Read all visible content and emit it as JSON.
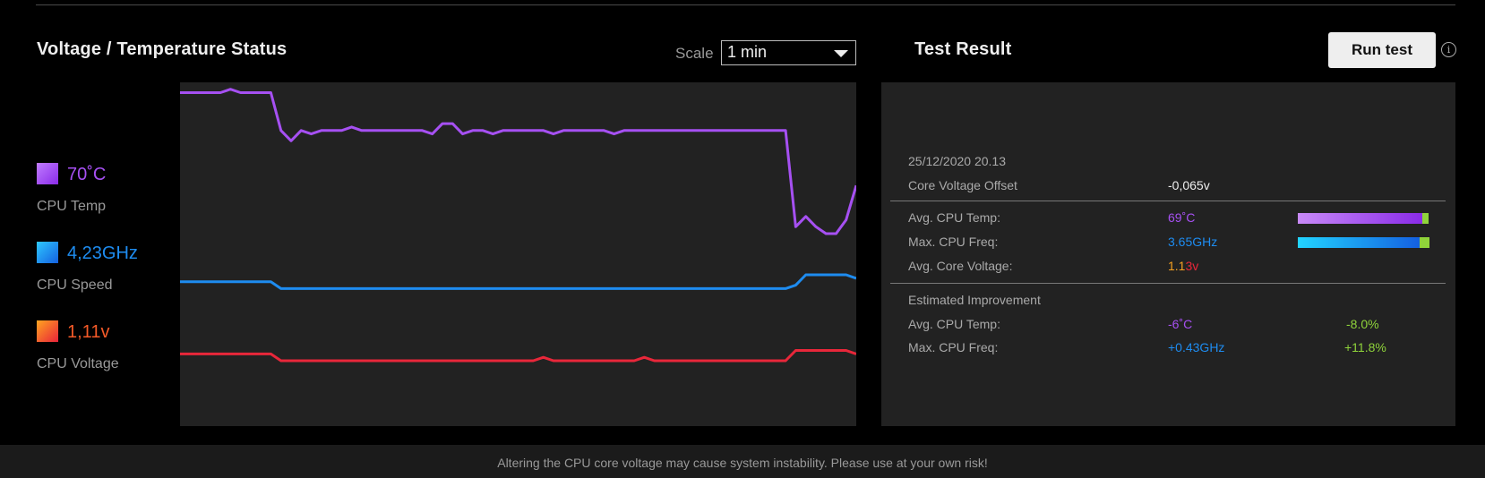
{
  "status_panel": {
    "title": "Voltage / Temperature Status",
    "scale_label": "Scale",
    "scale_value": "1 min"
  },
  "legend": [
    {
      "value": "70˚C",
      "label": "CPU Temp",
      "color": "#a650f2"
    },
    {
      "value": "4,23GHz",
      "label": "CPU Speed",
      "color": "#1e8cf0"
    },
    {
      "value": "1,11v",
      "label": "CPU Voltage",
      "color": "#f55a28"
    }
  ],
  "chart_data": {
    "type": "line",
    "title": "",
    "xlabel": "",
    "ylabel": "",
    "grid": false,
    "series": [
      {
        "color": "#a650f2",
        "values": [
          0.97,
          0.97,
          0.97,
          0.97,
          0.97,
          0.98,
          0.97,
          0.97,
          0.97,
          0.97,
          0.86,
          0.83,
          0.86,
          0.85,
          0.86,
          0.86,
          0.86,
          0.87,
          0.86,
          0.86,
          0.86,
          0.86,
          0.86,
          0.86,
          0.86,
          0.85,
          0.88,
          0.88,
          0.85,
          0.86,
          0.86,
          0.85,
          0.86,
          0.86,
          0.86,
          0.86,
          0.86,
          0.85,
          0.86,
          0.86,
          0.86,
          0.86,
          0.86,
          0.85,
          0.86,
          0.86,
          0.86,
          0.86,
          0.86,
          0.86,
          0.86,
          0.86,
          0.86,
          0.86,
          0.86,
          0.86,
          0.86,
          0.86,
          0.86,
          0.86,
          0.86,
          0.58,
          0.61,
          0.58,
          0.56,
          0.56,
          0.6,
          0.7
        ]
      },
      {
        "color": "#1e8cf0",
        "values": [
          0.42,
          0.42,
          0.42,
          0.42,
          0.42,
          0.42,
          0.42,
          0.42,
          0.42,
          0.42,
          0.4,
          0.4,
          0.4,
          0.4,
          0.4,
          0.4,
          0.4,
          0.4,
          0.4,
          0.4,
          0.4,
          0.4,
          0.4,
          0.4,
          0.4,
          0.4,
          0.4,
          0.4,
          0.4,
          0.4,
          0.4,
          0.4,
          0.4,
          0.4,
          0.4,
          0.4,
          0.4,
          0.4,
          0.4,
          0.4,
          0.4,
          0.4,
          0.4,
          0.4,
          0.4,
          0.4,
          0.4,
          0.4,
          0.4,
          0.4,
          0.4,
          0.4,
          0.4,
          0.4,
          0.4,
          0.4,
          0.4,
          0.4,
          0.4,
          0.4,
          0.4,
          0.41,
          0.44,
          0.44,
          0.44,
          0.44,
          0.44,
          0.43
        ]
      },
      {
        "color": "#e8273a",
        "values": [
          0.21,
          0.21,
          0.21,
          0.21,
          0.21,
          0.21,
          0.21,
          0.21,
          0.21,
          0.21,
          0.19,
          0.19,
          0.19,
          0.19,
          0.19,
          0.19,
          0.19,
          0.19,
          0.19,
          0.19,
          0.19,
          0.19,
          0.19,
          0.19,
          0.19,
          0.19,
          0.19,
          0.19,
          0.19,
          0.19,
          0.19,
          0.19,
          0.19,
          0.19,
          0.19,
          0.19,
          0.2,
          0.19,
          0.19,
          0.19,
          0.19,
          0.19,
          0.19,
          0.19,
          0.19,
          0.19,
          0.2,
          0.19,
          0.19,
          0.19,
          0.19,
          0.19,
          0.19,
          0.19,
          0.19,
          0.19,
          0.19,
          0.19,
          0.19,
          0.19,
          0.19,
          0.22,
          0.22,
          0.22,
          0.22,
          0.22,
          0.22,
          0.21
        ]
      }
    ]
  },
  "result_panel": {
    "title": "Test Result",
    "run_button": "Run test",
    "info_glyph": "i",
    "date": "25/12/2020 20.13",
    "core_offset_label": "Core Voltage Offset",
    "core_offset_value": "-0,065v",
    "avg_temp_label": "Avg. CPU Temp:",
    "avg_temp_value": "69˚C",
    "avg_temp_fraction": 0.95,
    "max_freq_label": "Max. CPU Freq:",
    "max_freq_value": "3.65GHz",
    "max_freq_fraction": 0.93,
    "avg_voltage_label": "Avg. Core Voltage:",
    "avg_voltage_value_main": "1.1",
    "avg_voltage_value_rest": "3v",
    "improvement_label": "Estimated Improvement",
    "imp_temp_label": "Avg. CPU Temp:",
    "imp_temp_value": "-6˚C",
    "imp_temp_pct": "-8.0%",
    "imp_freq_label": "Max. CPU Freq:",
    "imp_freq_value": "+0.43GHz",
    "imp_freq_pct": "+11.8%"
  },
  "footer": {
    "warning": "Altering the CPU core voltage may cause system instability. Please use at your own risk!"
  },
  "colors": {
    "temp": "#a650f2",
    "freq": "#1e8cf0",
    "voltage": "#f55a28",
    "improvement": "#8fd33a"
  }
}
